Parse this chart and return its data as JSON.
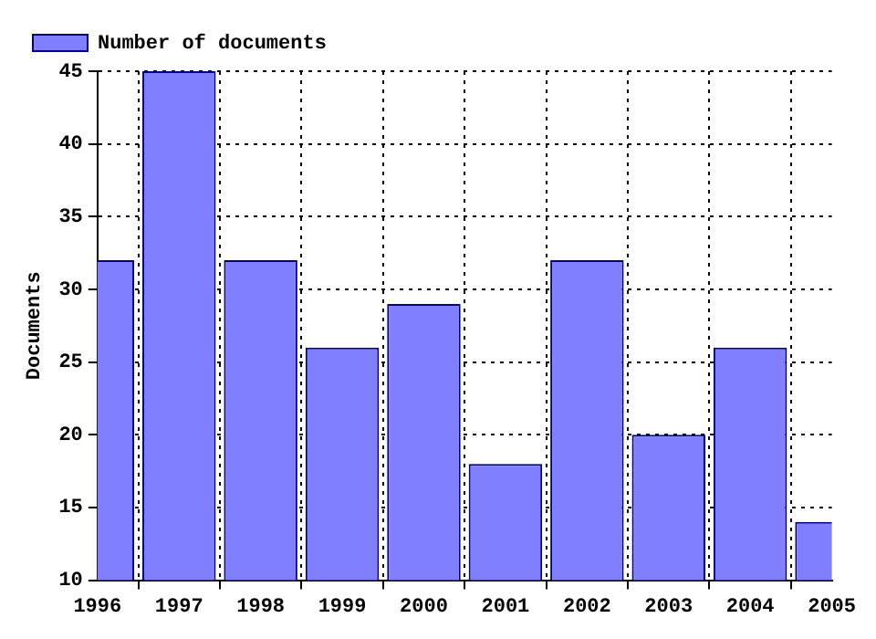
{
  "chart_data": {
    "type": "bar",
    "ylabel": "Documents",
    "x": [
      1996,
      1997,
      1998,
      1999,
      2000,
      2001,
      2002,
      2003,
      2004,
      2005
    ],
    "series": [
      {
        "name": "Number of documents",
        "color": "#7f7fff",
        "values": [
          32,
          45,
          32,
          26,
          29,
          18,
          32,
          20,
          26,
          14
        ]
      }
    ],
    "xlim": [
      1996,
      2005
    ],
    "xticks": [
      1996,
      1997,
      1998,
      1999,
      2000,
      2001,
      2002,
      2003,
      2004,
      2005
    ],
    "ylim": [
      10,
      45
    ],
    "yticks": [
      10,
      15,
      20,
      25,
      30,
      35,
      40,
      45
    ],
    "grid": true,
    "legend": "top left"
  }
}
